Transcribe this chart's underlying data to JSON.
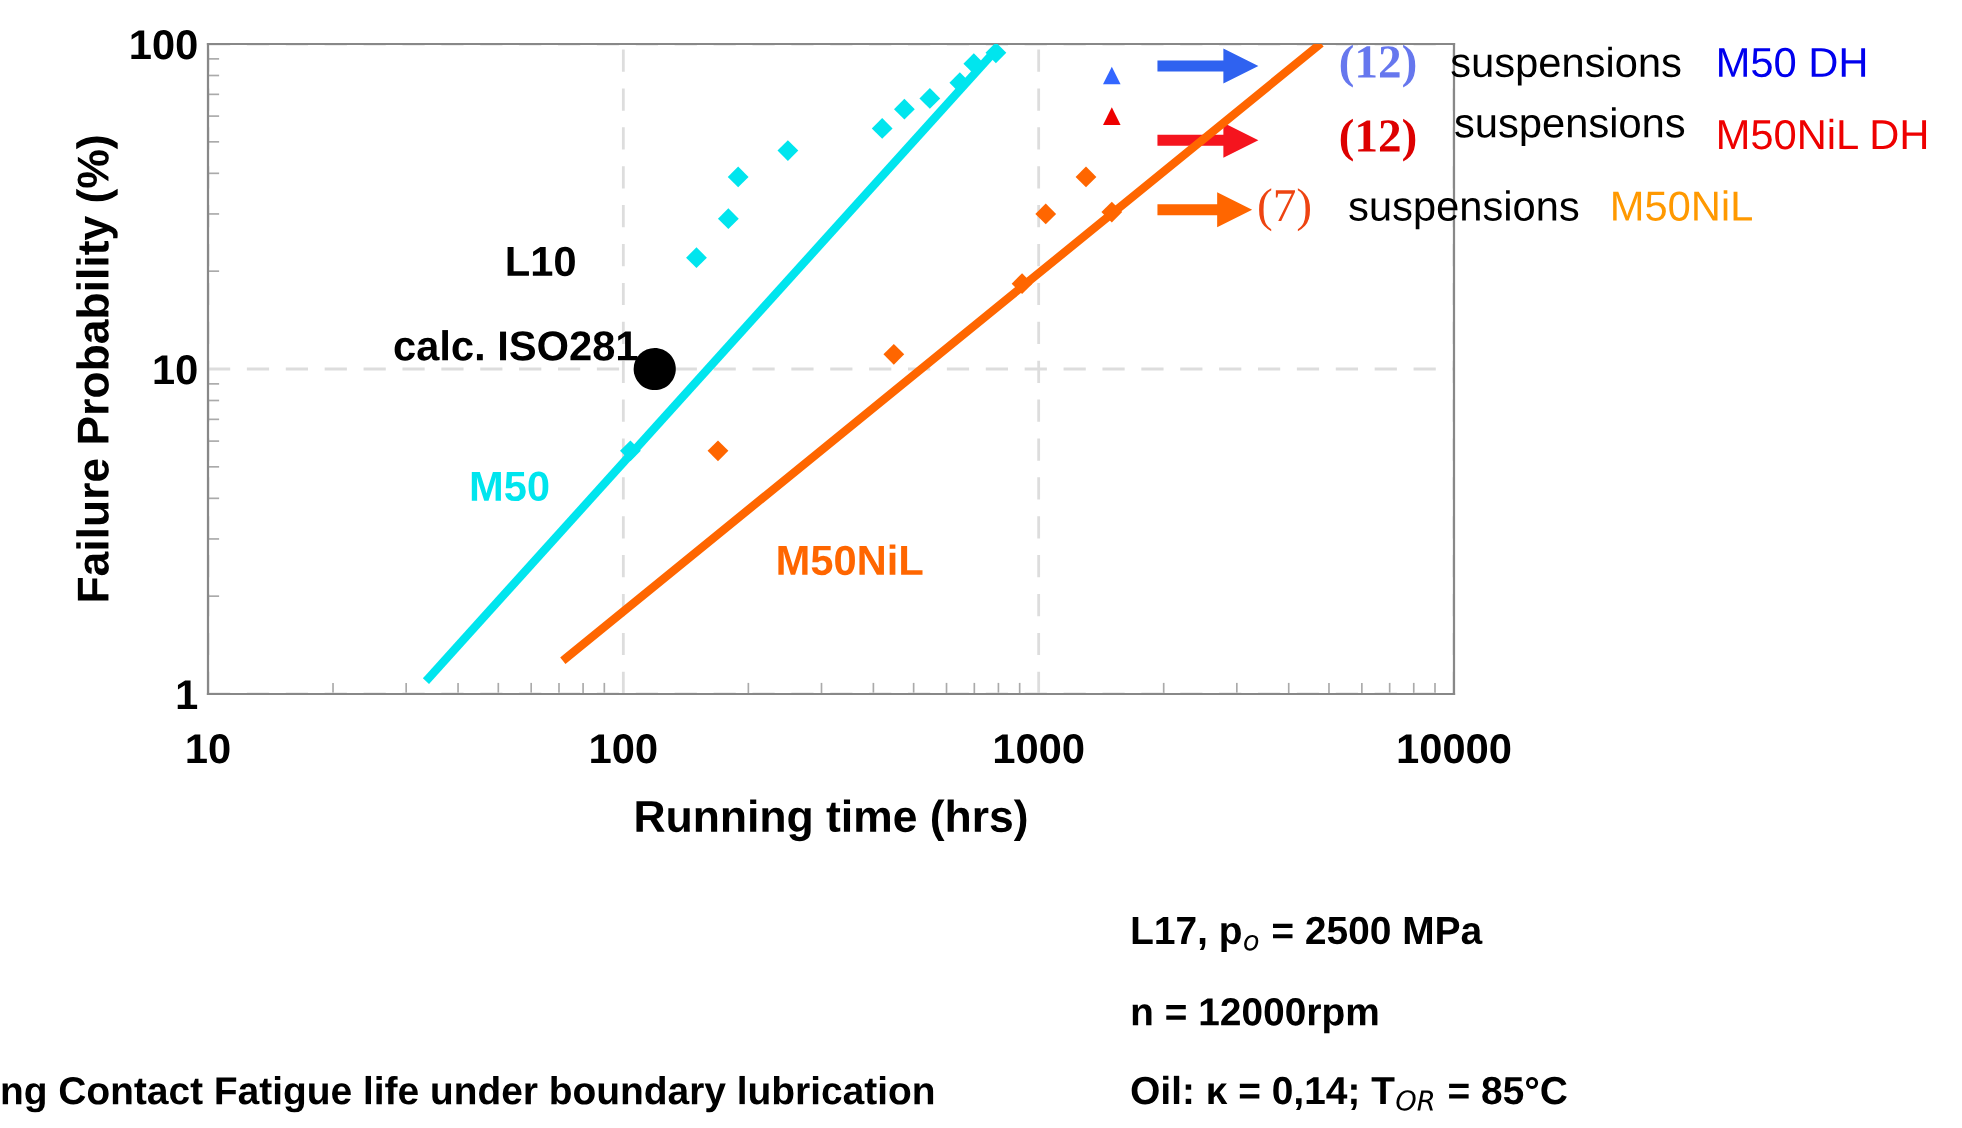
{
  "chart_data": {
    "type": "scatter",
    "xlabel": "Running time (hrs)",
    "ylabel": "Failure Probability (%)",
    "log": "xy",
    "xlim": [
      10,
      10000
    ],
    "ylim": [
      1,
      100
    ],
    "xticks": [
      10,
      100,
      1000,
      10000
    ],
    "yticks": [
      1,
      10,
      100
    ],
    "grid": true,
    "series": [
      {
        "color": "#00e5ee",
        "marker": "diamond",
        "x": [
          104,
          150,
          179,
          189,
          249,
          420,
          475,
          547,
          646,
          698,
          789
        ],
        "values": [
          5.6,
          22,
          29,
          39,
          47,
          55,
          63,
          68,
          76,
          87,
          94
        ]
      },
      {
        "color": "#ff6600",
        "marker": "diamond",
        "x": [
          169,
          448,
          912,
          1040,
          1300,
          1500
        ],
        "values": [
          5.6,
          11.1,
          18.3,
          30,
          39,
          30.4
        ]
      },
      {
        "type": "line",
        "name": "M50",
        "color": "#00e5ee",
        "x": [
          34,
          790
        ],
        "values": [
          1.12,
          96
        ]
      },
      {
        "type": "line",
        "name": "M50NiL",
        "color": "#ff6600",
        "x": [
          72.8,
          4700
        ],
        "values": [
          1.29,
          98.6
        ]
      },
      {
        "color": "#3366ff",
        "marker": "triangle",
        "x": [
          1500
        ],
        "values": [
          80
        ]
      },
      {
        "color": "#ee0000",
        "marker": "triangle",
        "x": [
          1500
        ],
        "values": [
          60
        ]
      },
      {
        "color": "#000000",
        "marker": "circle",
        "x": [
          119
        ],
        "values": [
          10
        ]
      }
    ],
    "annotations": [
      "L10",
      "calc. ISO281",
      "(12)",
      "suspensions",
      "M50 DH",
      "(12)",
      "suspensions",
      "M50NiL DH",
      "(7)",
      "suspensions",
      "M50NiL",
      "ng Contact Fatigue life under boundary lubrication",
      "L17, p$_{o}$ = 2500 MPa",
      "n = 12000rpm",
      "Oil: κ = 0,14; T$_{OR}$ = 85°C"
    ]
  }
}
